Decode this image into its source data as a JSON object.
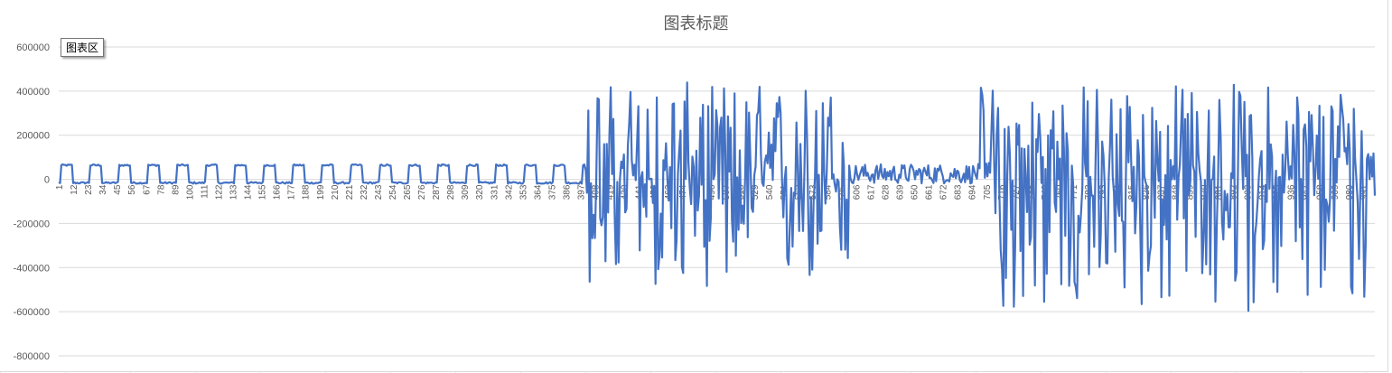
{
  "chart_title": "图表标题",
  "tooltip_text": "图表区",
  "colors": {
    "series": "#4472C4",
    "grid": "#d9d9d9",
    "axis_text": "#595959"
  },
  "chart_data": {
    "type": "line",
    "title": "图表标题",
    "xlabel": "",
    "ylabel": "",
    "ylim": [
      -800000,
      600000
    ],
    "yticks": [
      -800000,
      -600000,
      -400000,
      -200000,
      0,
      200000,
      400000,
      600000
    ],
    "ytick_labels": [
      "-800000",
      "-600000",
      "-400000",
      "-200000",
      "0",
      "200000",
      "400000",
      "600000"
    ],
    "x_categories_visible": [
      "1",
      "12",
      "23",
      "34",
      "45",
      "56",
      "67",
      "78",
      "89",
      "100",
      "111",
      "122",
      "133",
      "144",
      "155",
      "166",
      "177",
      "188",
      "199",
      "210",
      "221",
      "232",
      "243",
      "254",
      "265",
      "276",
      "287",
      "298",
      "309",
      "320",
      "331",
      "342",
      "353",
      "364",
      "375",
      "386",
      "397",
      "408",
      "419",
      "430",
      "441",
      "452",
      "463",
      "474",
      "485",
      "496",
      "507",
      "518",
      "529",
      "540",
      "551",
      "562",
      "573",
      "584",
      "595",
      "606",
      "617",
      "628",
      "639",
      "650",
      "661",
      "672",
      "683",
      "694",
      "705",
      "716",
      "727",
      "738",
      "749",
      "760",
      "771",
      "782",
      "793",
      "804",
      "815",
      "826",
      "837",
      "848",
      "859",
      "870",
      "881",
      "892",
      "903",
      "914",
      "925",
      "936",
      "947",
      "958",
      "969",
      "980",
      "991"
    ],
    "xlim": [
      1,
      1000
    ],
    "grid": true,
    "legend": "none",
    "series": [
      {
        "values_by_segment": [
          {
            "x": [
              1,
              400
            ],
            "pattern": "square_wave",
            "high": 60000,
            "low": -20000,
            "period": 22
          },
          {
            "x": [
              401,
              600
            ],
            "pattern": "noise",
            "min": -490000,
            "max": 440000
          },
          {
            "x": [
              601,
              700
            ],
            "pattern": "small_noise",
            "min": -20000,
            "max": 70000
          },
          {
            "x": [
              701,
              1000
            ],
            "pattern": "noise",
            "min": -600000,
            "max": 440000
          }
        ]
      }
    ]
  }
}
